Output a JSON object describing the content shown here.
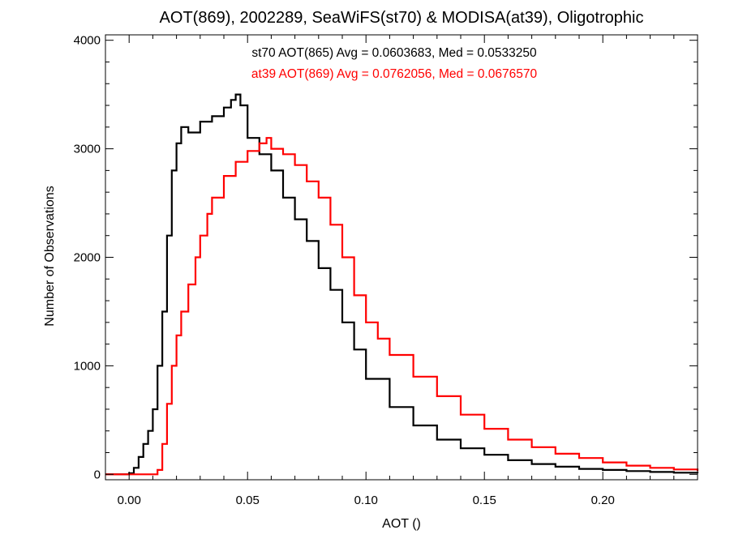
{
  "chart_data": {
    "type": "line",
    "title": "AOT(869), 2002289, SeaWiFS(st70) & MODISA(at39), Oligotrophic",
    "xlabel": "AOT ()",
    "ylabel": "Number of Observations",
    "xlim": [
      -0.01,
      0.24
    ],
    "ylim": [
      -50,
      4050
    ],
    "xticks": [
      0.0,
      0.05,
      0.1,
      0.15,
      0.2
    ],
    "xtick_labels": [
      "0.00",
      "0.05",
      "0.10",
      "0.15",
      "0.20"
    ],
    "yticks": [
      0,
      1000,
      2000,
      3000,
      4000
    ],
    "ytick_labels": [
      "0",
      "1000",
      "2000",
      "3000",
      "4000"
    ],
    "grid": false,
    "step": true,
    "annotations": [
      {
        "text": "st70 AOT(865) Avg = 0.0603683, Med = 0.0533250",
        "color": "#000000"
      },
      {
        "text": "at39 AOT(869) Avg = 0.0762056, Med = 0.0676570",
        "color": "#ff0000"
      }
    ],
    "series": [
      {
        "color": "#000000",
        "x": [
          -0.01,
          0.0,
          0.002,
          0.004,
          0.006,
          0.008,
          0.01,
          0.012,
          0.014,
          0.016,
          0.018,
          0.02,
          0.022,
          0.025,
          0.03,
          0.035,
          0.04,
          0.043,
          0.045,
          0.047,
          0.05,
          0.055,
          0.06,
          0.065,
          0.07,
          0.075,
          0.08,
          0.085,
          0.09,
          0.095,
          0.1,
          0.11,
          0.12,
          0.13,
          0.14,
          0.15,
          0.16,
          0.17,
          0.18,
          0.19,
          0.2,
          0.21,
          0.22,
          0.23,
          0.24
        ],
        "y": [
          0,
          10,
          60,
          160,
          280,
          400,
          600,
          1000,
          1500,
          2200,
          2800,
          3050,
          3200,
          3150,
          3250,
          3300,
          3380,
          3450,
          3500,
          3400,
          3100,
          2950,
          2800,
          2550,
          2350,
          2150,
          1900,
          1700,
          1400,
          1150,
          880,
          620,
          450,
          320,
          240,
          180,
          130,
          95,
          70,
          50,
          40,
          30,
          22,
          15,
          10
        ]
      },
      {
        "color": "#ff0000",
        "x": [
          -0.01,
          0.01,
          0.012,
          0.014,
          0.016,
          0.018,
          0.02,
          0.022,
          0.025,
          0.028,
          0.03,
          0.033,
          0.035,
          0.04,
          0.045,
          0.05,
          0.055,
          0.058,
          0.06,
          0.065,
          0.07,
          0.075,
          0.08,
          0.085,
          0.09,
          0.095,
          0.1,
          0.105,
          0.11,
          0.12,
          0.13,
          0.14,
          0.15,
          0.16,
          0.17,
          0.18,
          0.19,
          0.2,
          0.21,
          0.22,
          0.23,
          0.24
        ],
        "y": [
          0,
          0,
          40,
          280,
          650,
          1000,
          1280,
          1500,
          1750,
          2000,
          2200,
          2400,
          2550,
          2750,
          2880,
          2980,
          3050,
          3100,
          3000,
          2950,
          2850,
          2700,
          2550,
          2300,
          2000,
          1650,
          1400,
          1250,
          1100,
          900,
          720,
          550,
          420,
          320,
          250,
          190,
          150,
          110,
          80,
          60,
          45,
          30
        ]
      }
    ]
  }
}
